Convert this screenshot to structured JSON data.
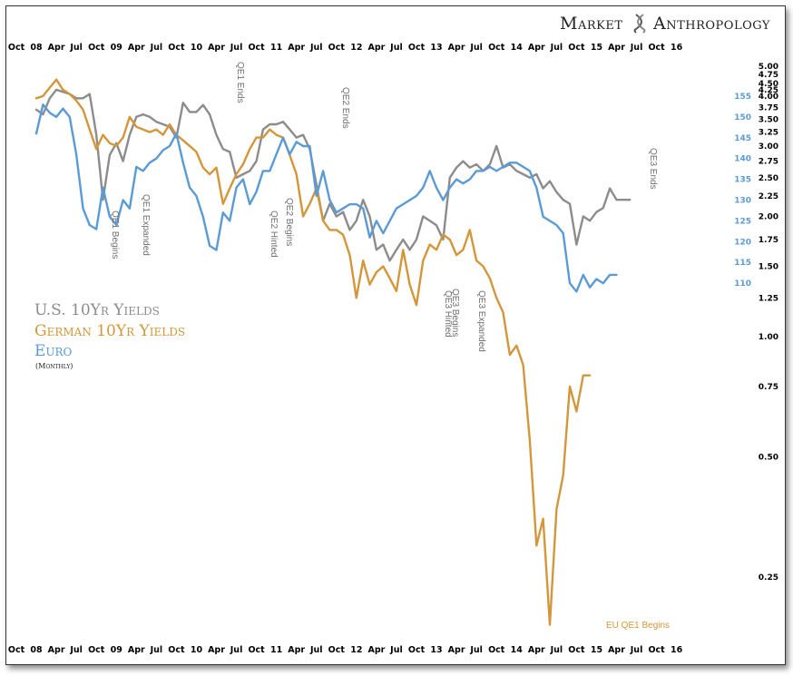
{
  "brand": {
    "name_part1": "Market",
    "name_part2": "Anthropology",
    "logo_icon": "dna-helix-icon"
  },
  "colors": {
    "us": "#8c8c8c",
    "german": "#d4963a",
    "euro": "#5b9bd5",
    "annotation_gray": "#6e6e6e",
    "annotation_orange": "#d4963a",
    "axis_text": "#000000",
    "euro_axis_text": "#5b9bd5"
  },
  "chart_data": {
    "type": "line",
    "title": "U.S. 10Yr Yields / German 10Yr Yields / Euro (Monthly)",
    "legend": [
      {
        "label": "U.S. 10Yr Yields",
        "series": "us"
      },
      {
        "label": "German 10Yr Yields",
        "series": "german"
      },
      {
        "label": "Euro",
        "series": "euro"
      }
    ],
    "legend_note": "(Monthly)",
    "legend_placement": "left-middle",
    "x_tick_labels": [
      "Oct",
      "08",
      "Apr",
      "Jul",
      "Oct",
      "09",
      "Apr",
      "Jul",
      "Oct",
      "10",
      "Apr",
      "Jul",
      "Oct",
      "11",
      "Apr",
      "Jul",
      "Oct",
      "12",
      "Apr",
      "Jul",
      "Oct",
      "13",
      "Apr",
      "Jul",
      "Oct",
      "14",
      "Apr",
      "Jul",
      "Oct",
      "15",
      "Apr",
      "Jul",
      "Oct",
      "16"
    ],
    "x_range": [
      "2007-10",
      "2016-01"
    ],
    "yield_axis": {
      "scale": "log",
      "side": "right",
      "ticks": [
        "5.00",
        "4.75",
        "4.50",
        "4.25",
        "4.00",
        "3.75",
        "3.50",
        "3.25",
        "3.00",
        "2.75",
        "2.50",
        "2.25",
        "2.00",
        "1.75",
        "1.50",
        "1.25",
        "1.00",
        "0.75",
        "0.50",
        "0.25"
      ],
      "range": [
        0.19,
        5.0
      ]
    },
    "euro_axis": {
      "scale": "linear",
      "side": "right-inner",
      "ticks": [
        "155",
        "150",
        "145",
        "140",
        "135",
        "130",
        "125",
        "120",
        "115",
        "110"
      ],
      "range": [
        110,
        155
      ]
    },
    "series": [
      {
        "name": "U.S. 10Yr Yields",
        "key": "us",
        "axis": "yield",
        "start": "2008-01",
        "values": [
          3.7,
          3.6,
          3.95,
          4.15,
          4.1,
          4.05,
          3.95,
          3.95,
          4.05,
          3.2,
          2.2,
          2.85,
          3.05,
          2.75,
          3.2,
          3.55,
          3.6,
          3.55,
          3.45,
          3.4,
          3.35,
          3.15,
          3.85,
          3.65,
          3.65,
          3.8,
          3.6,
          3.2,
          2.95,
          2.9,
          2.5,
          2.55,
          2.6,
          2.75,
          3.3,
          3.4,
          3.4,
          3.45,
          3.3,
          3.15,
          3.2,
          2.95,
          2.4,
          1.95,
          2.15,
          2.0,
          2.05,
          1.85,
          1.95,
          2.2,
          2.0,
          1.65,
          1.7,
          1.55,
          1.65,
          1.75,
          1.65,
          1.75,
          2.0,
          1.95,
          1.9,
          1.75,
          2.5,
          2.65,
          2.75,
          2.65,
          2.7,
          2.6,
          2.7,
          3.0,
          2.65,
          2.7,
          2.6,
          2.55,
          2.5,
          2.55,
          2.35,
          2.45,
          2.3,
          2.2,
          2.15,
          1.7,
          2.0,
          1.95,
          2.05,
          2.1,
          2.35,
          2.2,
          2.2,
          2.2
        ]
      },
      {
        "name": "German 10Yr Yields",
        "key": "german",
        "axis": "yield",
        "start": "2008-01",
        "values": [
          3.95,
          4.0,
          4.2,
          4.4,
          4.15,
          4.05,
          3.9,
          3.7,
          3.3,
          2.95,
          3.2,
          3.05,
          3.0,
          3.15,
          3.55,
          3.35,
          3.3,
          3.25,
          3.3,
          3.2,
          3.4,
          3.2,
          3.1,
          3.0,
          2.9,
          2.65,
          2.55,
          2.65,
          2.15,
          2.35,
          2.55,
          2.7,
          2.95,
          3.15,
          3.15,
          3.3,
          3.2,
          3.15,
          2.85,
          2.55,
          2.0,
          2.15,
          2.35,
          1.95,
          1.85,
          1.85,
          1.8,
          1.6,
          1.25,
          1.55,
          1.35,
          1.45,
          1.5,
          1.4,
          1.3,
          1.65,
          1.35,
          1.2,
          1.55,
          1.7,
          1.65,
          1.8,
          1.75,
          1.6,
          1.65,
          1.85,
          1.55,
          1.5,
          1.4,
          1.25,
          1.15,
          0.9,
          0.95,
          0.85,
          0.55,
          0.3,
          0.35,
          0.19,
          0.37,
          0.45,
          0.75,
          0.65,
          0.8,
          0.8
        ]
      },
      {
        "name": "Euro",
        "key": "euro",
        "axis": "euro",
        "start": "2008-01",
        "values": [
          146,
          153,
          151,
          150,
          152,
          150,
          141,
          128,
          124,
          123,
          133,
          126,
          124,
          130,
          128,
          138,
          137,
          139,
          140,
          142,
          143,
          146,
          139,
          133,
          131,
          126,
          119,
          118,
          127,
          125,
          133,
          135,
          129,
          132,
          137,
          137,
          141,
          145,
          141,
          144,
          143,
          143,
          131,
          137,
          130,
          127,
          128,
          129,
          129,
          128,
          121,
          125,
          122,
          125,
          128,
          129,
          130,
          131,
          133,
          137,
          133,
          130,
          133,
          135,
          134,
          135,
          137,
          137,
          138,
          137,
          138,
          139,
          139,
          138,
          137,
          133,
          126,
          125,
          124,
          122,
          110,
          108,
          112,
          109,
          111,
          110,
          112,
          112
        ]
      }
    ],
    "annotations": [
      {
        "text": "QE1  Begins",
        "date": "2008-11",
        "color_key": "annotation_gray"
      },
      {
        "text": "QE1  Expanded",
        "date": "2009-03",
        "color_key": "annotation_gray"
      },
      {
        "text": "QE1  Ends",
        "date": "2010-03",
        "color_key": "annotation_gray"
      },
      {
        "text": "QE2  Hinted",
        "date": "2010-08",
        "color_key": "annotation_gray"
      },
      {
        "text": "QE2  Begins",
        "date": "2010-11",
        "color_key": "annotation_gray"
      },
      {
        "text": "QE2  Ends",
        "date": "2011-06",
        "color_key": "annotation_gray"
      },
      {
        "text": "QE3  Begins",
        "date": "2012-09",
        "color_key": "annotation_gray"
      },
      {
        "text": "QE3  Hinted",
        "date": "2012-08",
        "color_key": "annotation_gray"
      },
      {
        "text": "QE3  Expanded",
        "date": "2012-12",
        "color_key": "annotation_gray"
      },
      {
        "text": "QE3  Ends",
        "date": "2014-10",
        "color_key": "annotation_gray"
      },
      {
        "text": "EU QE1  Begins",
        "date": "2015-03",
        "color_key": "annotation_orange"
      }
    ]
  }
}
